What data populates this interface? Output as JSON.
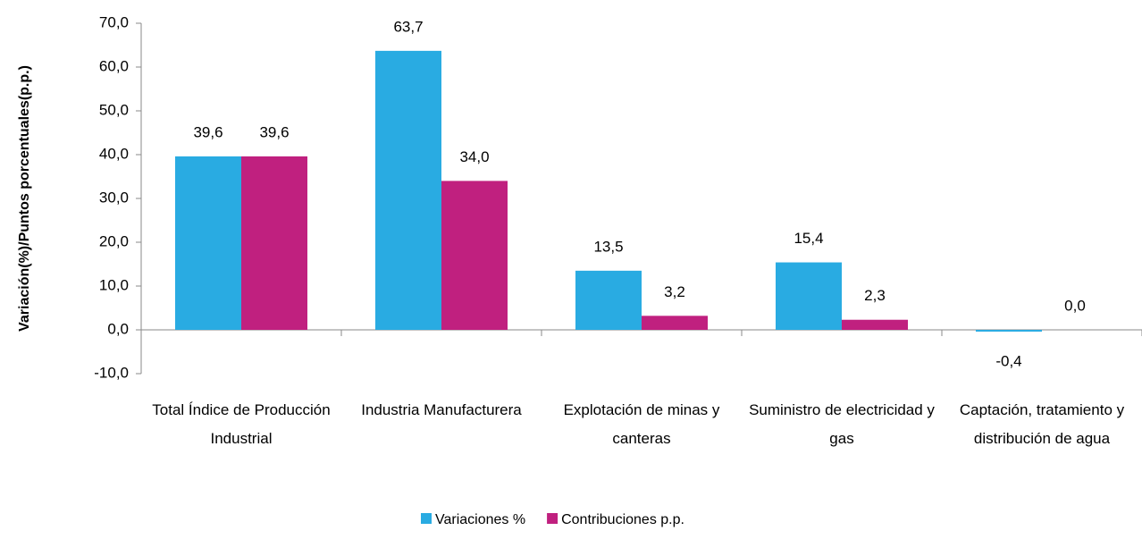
{
  "chart_data": {
    "type": "bar",
    "y_label": "Variación(%)/Puntos  porcentuales(p.p.)",
    "categories": [
      "Total Índice de Producción Industrial",
      "Industria Manufacturera",
      "Explotación de minas y canteras",
      "Suministro de electricidad y gas",
      "Captación, tratamiento y distribución de agua"
    ],
    "series": [
      {
        "name": "Variaciones %",
        "color": "#29abe2",
        "values": [
          39.6,
          63.7,
          13.5,
          15.4,
          -0.4
        ],
        "value_labels": [
          "39,6",
          "63,7",
          "13,5",
          "15,4",
          "-0,4"
        ]
      },
      {
        "name": "Contribuciones p.p.",
        "color": "#c0207f",
        "values": [
          39.6,
          34.0,
          3.2,
          2.3,
          0.0
        ],
        "value_labels": [
          "39,6",
          "34,0",
          "3,2",
          "2,3",
          "0,0"
        ]
      }
    ],
    "ylim": [
      -10,
      70
    ],
    "yticks": [
      {
        "value": -10,
        "label": "-10,0"
      },
      {
        "value": 0,
        "label": "0,0"
      },
      {
        "value": 10,
        "label": "10,0"
      },
      {
        "value": 20,
        "label": "20,0"
      },
      {
        "value": 30,
        "label": "30,0"
      },
      {
        "value": 40,
        "label": "40,0"
      },
      {
        "value": 50,
        "label": "50,0"
      },
      {
        "value": 60,
        "label": "60,0"
      },
      {
        "value": 70,
        "label": "70,0"
      }
    ],
    "legend": "bottom"
  }
}
